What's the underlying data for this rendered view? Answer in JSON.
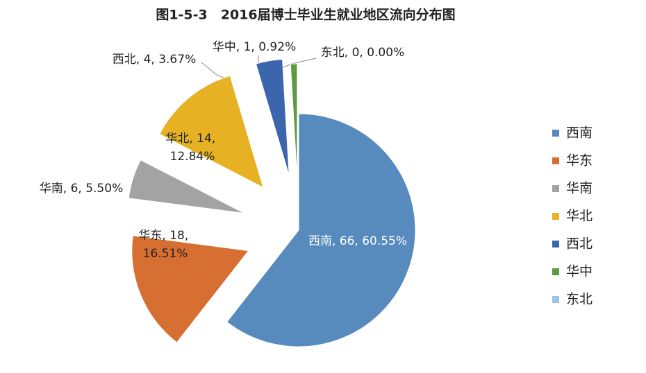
{
  "chart_data": {
    "type": "pie",
    "title": "图1-5-3　2016届博士毕业生就业地区流向分布图",
    "categories": [
      "西南",
      "华东",
      "华南",
      "华北",
      "西北",
      "华中",
      "东北"
    ],
    "values": [
      66,
      18,
      6,
      14,
      4,
      1,
      0
    ],
    "value_labels": [
      "西南, 66, 60.55%",
      "华东, 18, 16.51%",
      "华南, 6, 5.50%",
      "华北, 14, 12.84%",
      "西北, 4, 3.67%",
      "华中, 1, 0.92%",
      "东北, 0, 0.00%"
    ],
    "colors": [
      "#578bbd",
      "#d86f32",
      "#a3a3a3",
      "#e6b224",
      "#3b65ad",
      "#5e9a42",
      "#9ec3e6"
    ],
    "legend": "right"
  }
}
